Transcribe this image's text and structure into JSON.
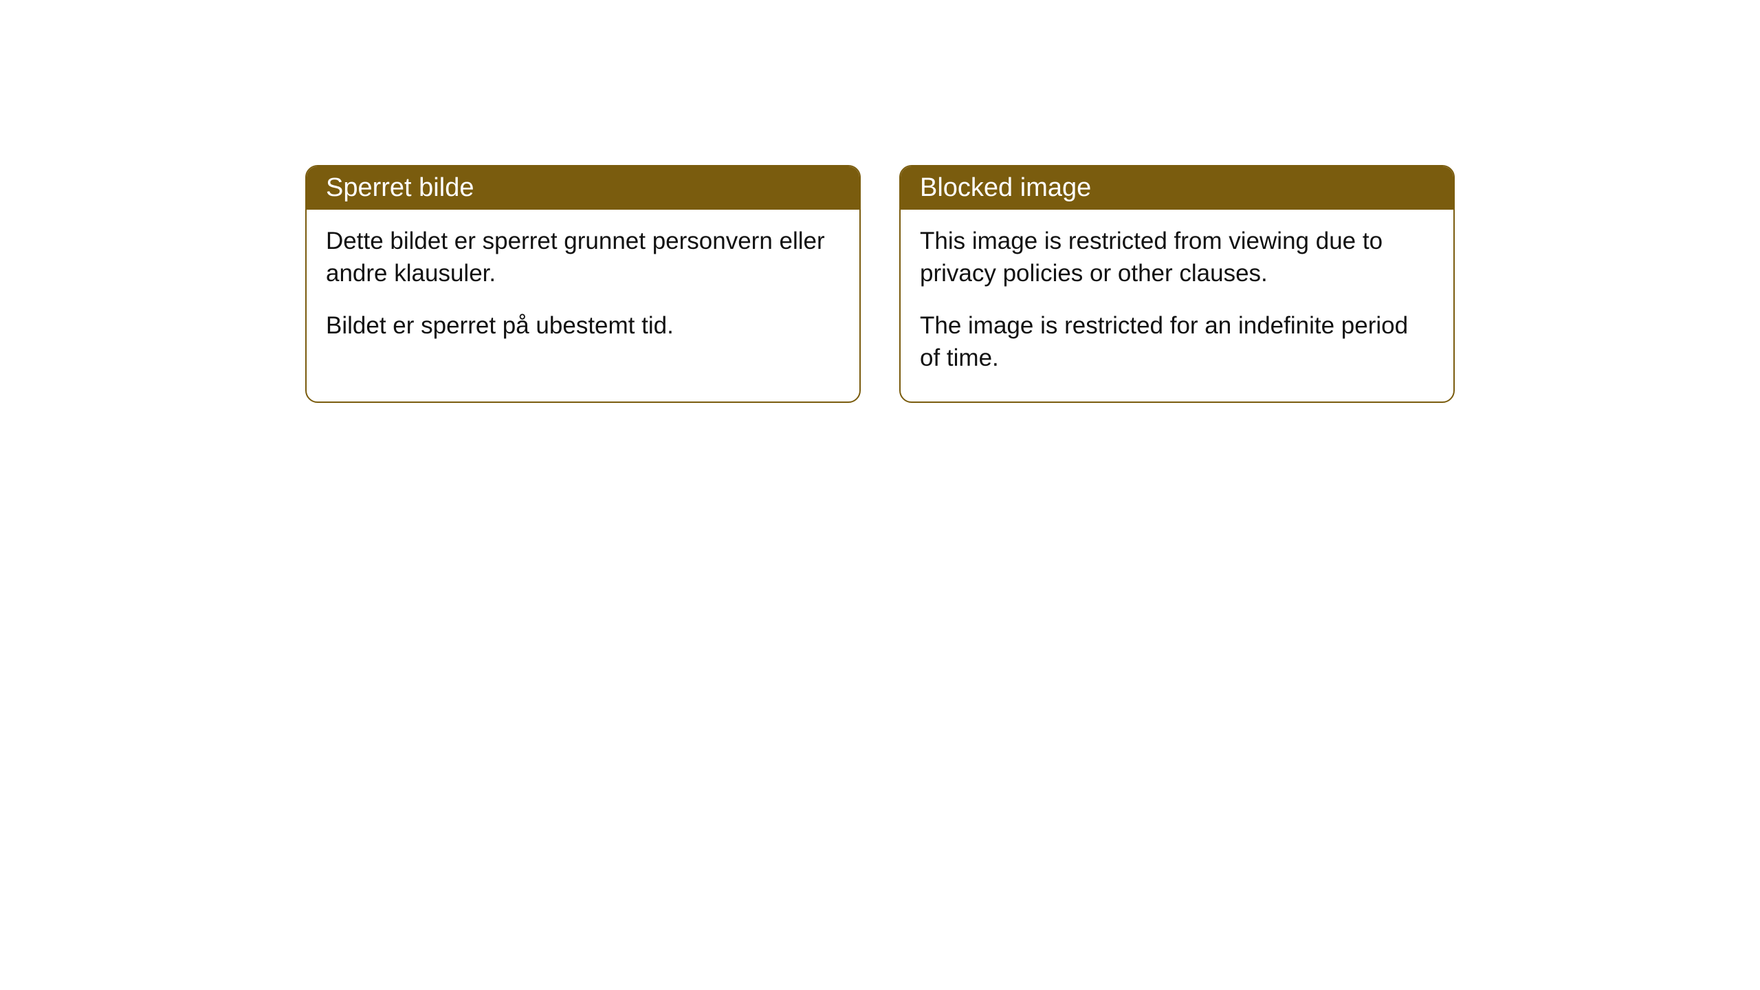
{
  "cards": [
    {
      "title": "Sperret bilde",
      "paragraph1": "Dette bildet er sperret grunnet personvern eller andre klausuler.",
      "paragraph2": "Bildet er sperret på ubestemt tid."
    },
    {
      "title": "Blocked image",
      "paragraph1": "This image is restricted from viewing due to privacy policies or other clauses.",
      "paragraph2": "The image is restricted for an indefinite period of time."
    }
  ],
  "styling": {
    "header_bg_color": "#7a5c0e",
    "header_text_color": "#ffffff",
    "border_color": "#7a5c0e",
    "body_text_color": "#111111",
    "page_bg_color": "#ffffff",
    "border_radius": 18,
    "title_fontsize": 38,
    "body_fontsize": 35
  }
}
